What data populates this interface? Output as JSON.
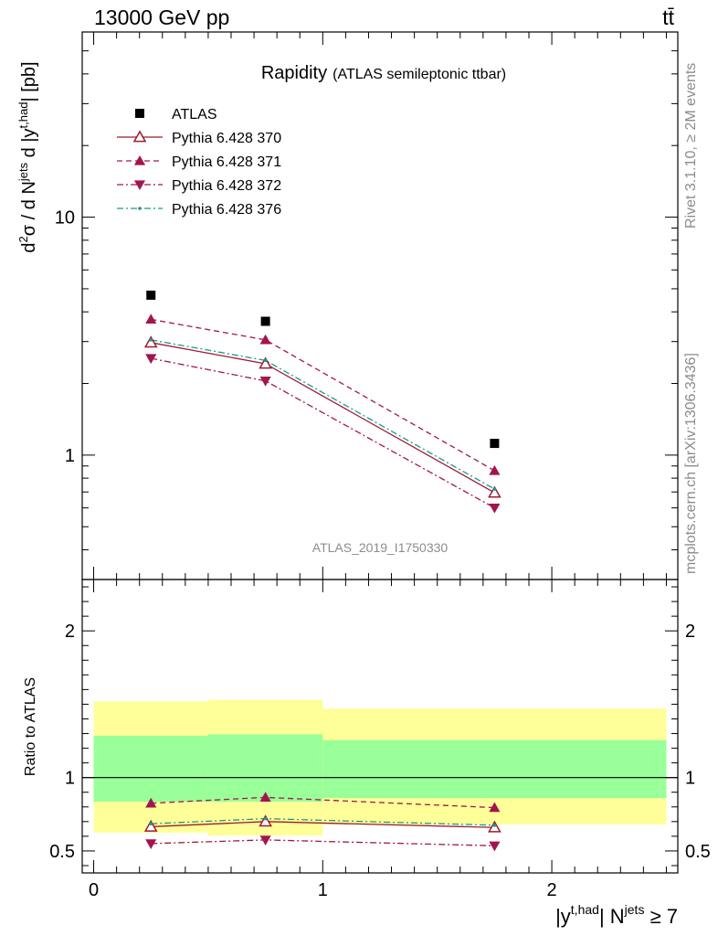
{
  "header": {
    "left_label": "13000 GeV pp",
    "right_label": "tt̄"
  },
  "side_labels": {
    "rivet": "Rivet 3.1.10, ≥ 2M events",
    "mcplots": "mcplots.cern.ch [arXiv:1306.3436]"
  },
  "watermark": "ATLAS_2019_I1750330",
  "chart_data": [
    {
      "type": "scatter",
      "title": "Rapidity",
      "subtitle": "(ATLAS semileptonic ttbar)",
      "ylabel": "d²σ / d N^jets d |y^t,had| [pb]",
      "yscale": "log",
      "ylim": [
        0.3,
        60
      ],
      "xlim": [
        -0.05,
        2.55
      ],
      "yticks": [
        {
          "value": 1,
          "label": "1"
        },
        {
          "value": 10,
          "label": "10"
        }
      ],
      "legend_position": "top-left",
      "x": [
        0.25,
        0.75,
        1.75
      ],
      "series": [
        {
          "name": "ATLAS",
          "values": [
            4.7,
            3.65,
            1.12
          ],
          "color": "#000000",
          "marker": "square",
          "style": "none"
        },
        {
          "name": "Pythia 6.428 370",
          "values": [
            2.97,
            2.42,
            0.695
          ],
          "color": "#9b1c31",
          "marker": "triangle-up-open",
          "style": "solid"
        },
        {
          "name": "Pythia 6.428 371",
          "values": [
            3.72,
            3.05,
            0.86
          ],
          "color": "#a3154f",
          "marker": "triangle-up",
          "style": "dashed"
        },
        {
          "name": "Pythia 6.428 372",
          "values": [
            2.55,
            2.05,
            0.6
          ],
          "color": "#a3154f",
          "marker": "triangle-down",
          "style": "dashdot"
        },
        {
          "name": "Pythia 6.428 376",
          "values": [
            3.05,
            2.5,
            0.72
          ],
          "color": "#1a9a86",
          "marker": "dot",
          "style": "dashdot"
        }
      ]
    },
    {
      "type": "scatter",
      "ylabel": "Ratio to ATLAS",
      "xlabel": "|y^t,had| N^jets ≥ 7",
      "ylim": [
        0.35,
        2.35
      ],
      "xlim": [
        -0.05,
        2.55
      ],
      "xticks": [
        {
          "value": 0,
          "label": "0"
        },
        {
          "value": 1,
          "label": "1"
        },
        {
          "value": 2,
          "label": "2"
        }
      ],
      "yticks": [
        {
          "value": 0.5,
          "label": "0.5"
        },
        {
          "value": 1,
          "label": "1"
        },
        {
          "value": 2,
          "label": "2"
        }
      ],
      "bands": [
        {
          "x_from": 0,
          "x_to": 0.5,
          "stat_low": 0.835,
          "stat_high": 1.285,
          "tot_low": 0.625,
          "tot_high": 1.52
        },
        {
          "x_from": 0.5,
          "x_to": 1,
          "stat_low": 0.835,
          "stat_high": 1.295,
          "tot_low": 0.605,
          "tot_high": 1.53
        },
        {
          "x_from": 1,
          "x_to": 2.5,
          "stat_low": 0.86,
          "stat_high": 1.255,
          "tot_low": 0.68,
          "tot_high": 1.47
        }
      ],
      "band_colors": {
        "stat": "#99ff99",
        "total": "#ffff99"
      },
      "x": [
        0.25,
        0.75,
        1.75
      ],
      "series": [
        {
          "name": "Pythia 6.428 370",
          "values": [
            0.665,
            0.7,
            0.66
          ],
          "color": "#9b1c31",
          "marker": "triangle-up-open",
          "style": "solid"
        },
        {
          "name": "Pythia 6.428 371",
          "values": [
            0.825,
            0.865,
            0.795
          ],
          "color": "#a3154f",
          "marker": "triangle-up",
          "style": "dashed"
        },
        {
          "name": "Pythia 6.428 372",
          "values": [
            0.55,
            0.575,
            0.535
          ],
          "color": "#a3154f",
          "marker": "triangle-down",
          "style": "dashdot"
        },
        {
          "name": "Pythia 6.428 376",
          "values": [
            0.685,
            0.72,
            0.675
          ],
          "color": "#1a9a86",
          "marker": "dot",
          "style": "dashdot"
        }
      ]
    }
  ]
}
